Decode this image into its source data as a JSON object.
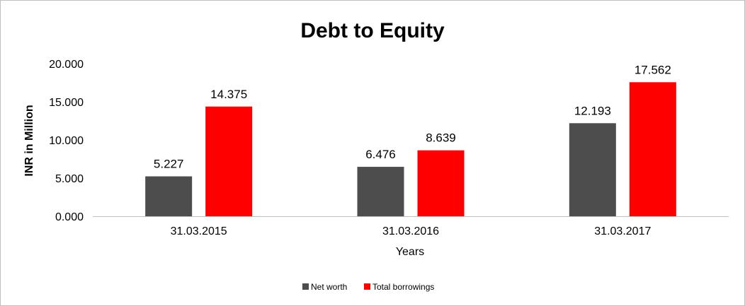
{
  "chart_data": {
    "type": "bar",
    "title": "Debt to Equity",
    "xlabel": "Years",
    "ylabel": "INR in Million",
    "categories": [
      "31.03.2015",
      "31.03.2016",
      "31.03.2017"
    ],
    "series": [
      {
        "name": "Net worth",
        "color": "#4d4d4d",
        "values": [
          5.227,
          6.476,
          12.193
        ],
        "labels": [
          "5.227",
          "6.476",
          "12.193"
        ]
      },
      {
        "name": "Total borrowings",
        "color": "#ff0000",
        "values": [
          14.375,
          8.639,
          17.562
        ],
        "labels": [
          "14.375",
          "8.639",
          "17.562"
        ]
      }
    ],
    "ylim": [
      0,
      20
    ],
    "yticks": [
      0,
      5,
      10,
      15,
      20
    ],
    "ytick_labels": [
      "0.000",
      "5.000",
      "10.000",
      "15.000",
      "20.000"
    ],
    "grid": false,
    "legend": "bottom"
  }
}
